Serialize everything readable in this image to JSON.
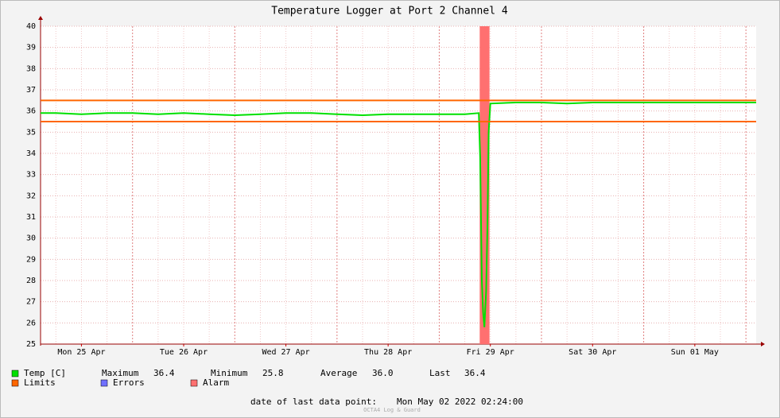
{
  "chart_data": {
    "type": "line",
    "title": "Temperature Logger at Port 2 Channel 4",
    "x": [
      2.4,
      6,
      12,
      18,
      24,
      30,
      36,
      42,
      48,
      54,
      60,
      66,
      72,
      78,
      84,
      90,
      96,
      102,
      105.3,
      105.6,
      106.0,
      106.3,
      106.6,
      107.0,
      107.3,
      107.6,
      108.0,
      114,
      120,
      126,
      132,
      138,
      144,
      150,
      156,
      162,
      168,
      170.4
    ],
    "series": [
      {
        "name": "Temp [C]",
        "color": "#00e000",
        "values": [
          35.9,
          35.9,
          35.85,
          35.9,
          35.9,
          35.85,
          35.9,
          35.85,
          35.8,
          35.85,
          35.9,
          35.9,
          35.85,
          35.8,
          35.85,
          35.85,
          35.85,
          35.85,
          35.9,
          33.8,
          28,
          26.5,
          25.8,
          27.5,
          30.5,
          35,
          36.35,
          36.4,
          36.4,
          36.35,
          36.4,
          36.4,
          36.4,
          36.4,
          36.4,
          36.4,
          36.4,
          36.4
        ]
      }
    ],
    "limits": {
      "name": "Limits",
      "color": "#ff6600",
      "values": [
        35.5,
        36.5
      ]
    },
    "errors": {
      "name": "Errors",
      "color": "#7070ff"
    },
    "alarm": {
      "name": "Alarm",
      "color": "#ff7070",
      "start": 105.5,
      "end": 107.8
    },
    "xlim": [
      2.4,
      170.4
    ],
    "xticks": [
      {
        "value": 12,
        "label": "Mon 25 Apr"
      },
      {
        "value": 36,
        "label": "Tue 26 Apr"
      },
      {
        "value": 60,
        "label": "Wed 27 Apr"
      },
      {
        "value": 84,
        "label": "Thu 28 Apr"
      },
      {
        "value": 108,
        "label": "Fri 29 Apr"
      },
      {
        "value": 132,
        "label": "Sat 30 Apr"
      },
      {
        "value": 156,
        "label": "Sun 01 May"
      }
    ],
    "ylim": [
      25,
      40
    ],
    "yticks": [
      25,
      26,
      27,
      28,
      29,
      30,
      31,
      32,
      33,
      34,
      35,
      36,
      37,
      38,
      39,
      40
    ],
    "grid": true,
    "stats": {
      "labels": [
        "Maximum",
        "Minimum",
        "Average",
        "Last"
      ],
      "values": [
        36.4,
        25.8,
        36,
        36.4
      ],
      "value_labels": [
        "36.4",
        "25.8",
        "36.0",
        "36.4"
      ]
    },
    "footer": {
      "label": "date of last data point:",
      "value": "Mon May 02 2022 02:24:00"
    },
    "watermark": "OCTA4 Log & Guard"
  }
}
